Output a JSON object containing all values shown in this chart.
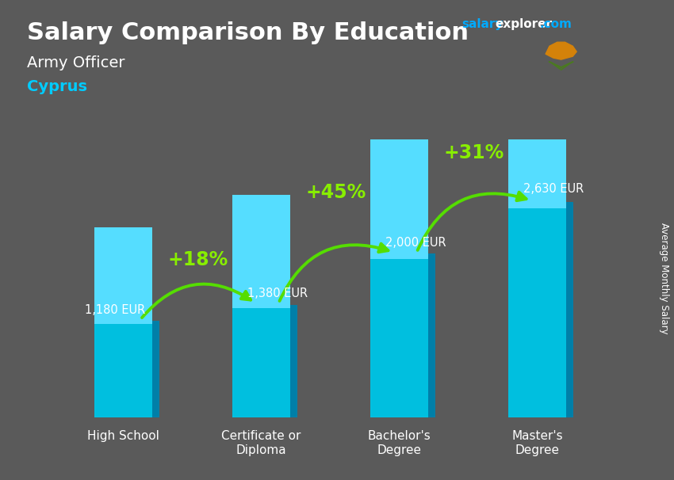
{
  "title_main": "Salary Comparison By Education",
  "title_sub": "Army Officer",
  "title_country": "Cyprus",
  "wm_salary": "salary",
  "wm_explorer": "explorer",
  "wm_com": ".com",
  "ylabel_right": "Average Monthly Salary",
  "categories": [
    "High School",
    "Certificate or\nDiploma",
    "Bachelor's\nDegree",
    "Master's\nDegree"
  ],
  "values": [
    1180,
    1380,
    2000,
    2630
  ],
  "bar_color": "#00bfdf",
  "bar_shade_color": "#007fa8",
  "value_labels": [
    "1,180 EUR",
    "1,380 EUR",
    "2,000 EUR",
    "2,630 EUR"
  ],
  "value_label_ha": [
    "left",
    "left",
    "left",
    "left"
  ],
  "pct_labels": [
    "+18%",
    "+45%",
    "+31%"
  ],
  "pct_color": "#88ee00",
  "arrow_color": "#55dd00",
  "bg_color": "#5a5a5a",
  "bar_width": 0.42,
  "ylim": [
    0,
    3400
  ],
  "wm_color_salary": "#00aaff",
  "wm_color_explorer": "#ffffff",
  "wm_color_com": "#00aaff",
  "title_color": "#ffffff",
  "subtitle_color": "#ffffff",
  "country_color": "#00ccff",
  "tick_label_color": "#ffffff",
  "val_label_color": "#ffffff",
  "right_label_color": "#ffffff"
}
